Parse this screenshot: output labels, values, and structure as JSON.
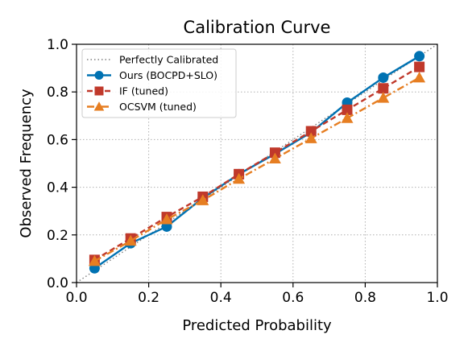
{
  "chart_data": {
    "type": "line",
    "title": "Calibration Curve",
    "xlabel": "Predicted Probability",
    "ylabel": "Observed Frequency",
    "xlim": [
      0.0,
      1.0
    ],
    "ylim": [
      0.0,
      1.0
    ],
    "xticks": [
      "0.0",
      "0.2",
      "0.4",
      "0.6",
      "0.8",
      "1.0"
    ],
    "yticks": [
      "0.0",
      "0.2",
      "0.4",
      "0.6",
      "0.8",
      "1.0"
    ],
    "grid": true,
    "legend_position": "top-left",
    "x": [
      0.05,
      0.15,
      0.25,
      0.35,
      0.45,
      0.55,
      0.65,
      0.75,
      0.85,
      0.95
    ],
    "series": [
      {
        "name": "Perfectly Calibrated",
        "x": [
          0.0,
          1.0
        ],
        "values": [
          0.0,
          1.0
        ],
        "color": "#808080",
        "line_style": "dotted",
        "marker": "none"
      },
      {
        "name": "Ours (BOCPD+SLO)",
        "values": [
          0.06,
          0.165,
          0.235,
          0.355,
          0.455,
          0.54,
          0.63,
          0.755,
          0.86,
          0.95
        ],
        "color": "#0072b2",
        "line_style": "solid",
        "marker": "circle"
      },
      {
        "name": "IF (tuned)",
        "values": [
          0.095,
          0.185,
          0.275,
          0.36,
          0.455,
          0.545,
          0.635,
          0.725,
          0.815,
          0.905
        ],
        "color": "#c0392b",
        "line_style": "dashed",
        "marker": "square"
      },
      {
        "name": "OCSVM (tuned)",
        "values": [
          0.09,
          0.175,
          0.265,
          0.345,
          0.435,
          0.52,
          0.605,
          0.69,
          0.775,
          0.86
        ],
        "color": "#e67e22",
        "line_style": "dashdot",
        "marker": "triangle"
      }
    ]
  }
}
